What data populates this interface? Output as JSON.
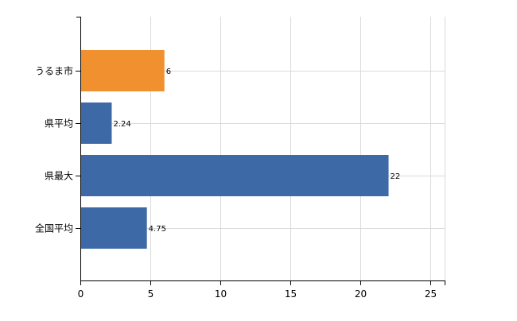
{
  "chart_data": {
    "type": "bar",
    "orientation": "horizontal",
    "categories": [
      "うるま市",
      "県平均",
      "県最大",
      "全国平均"
    ],
    "values": [
      6,
      2.24,
      22,
      4.75
    ],
    "value_labels": [
      "6",
      "2.24",
      "22",
      "4.75"
    ],
    "bar_colors": [
      "#f0902f",
      "#3d6aa6",
      "#3d6aa6",
      "#3d6aa6"
    ],
    "xlim": [
      0,
      26
    ],
    "x_ticks": [
      0,
      5,
      10,
      15,
      20,
      25
    ],
    "x_tick_labels": [
      "0",
      "5",
      "10",
      "15",
      "20",
      "25"
    ],
    "grid": "vertical",
    "title": "",
    "xlabel": "",
    "ylabel": ""
  }
}
